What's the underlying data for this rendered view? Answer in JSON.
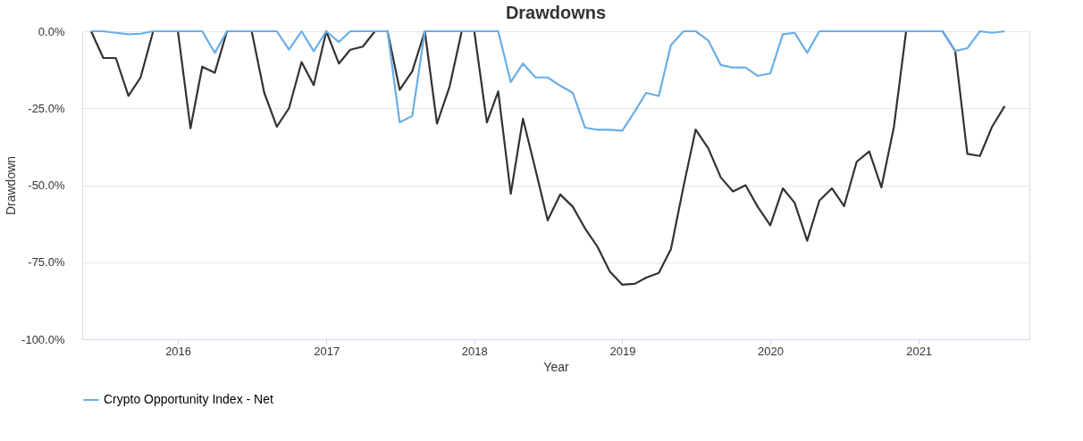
{
  "chart_data": {
    "type": "line",
    "title": "Drawdowns",
    "xlabel": "Year",
    "ylabel": "Drawdown",
    "x": [
      "2015-06",
      "2015-07",
      "2015-08",
      "2015-09",
      "2015-10",
      "2015-11",
      "2015-12",
      "2016-01",
      "2016-02",
      "2016-03",
      "2016-04",
      "2016-05",
      "2016-06",
      "2016-07",
      "2016-08",
      "2016-09",
      "2016-10",
      "2016-11",
      "2016-12",
      "2017-01",
      "2017-02",
      "2017-03",
      "2017-04",
      "2017-05",
      "2017-06",
      "2017-07",
      "2017-08",
      "2017-09",
      "2017-10",
      "2017-11",
      "2017-12",
      "2018-01",
      "2018-02",
      "2018-03",
      "2018-04",
      "2018-05",
      "2018-06",
      "2018-07",
      "2018-08",
      "2018-09",
      "2018-10",
      "2018-11",
      "2018-12",
      "2019-01",
      "2019-02",
      "2019-03",
      "2019-04",
      "2019-05",
      "2019-06",
      "2019-07",
      "2019-08",
      "2019-09",
      "2019-10",
      "2019-11",
      "2019-12",
      "2020-01",
      "2020-02",
      "2020-03",
      "2020-04",
      "2020-05",
      "2020-06",
      "2020-07",
      "2020-08",
      "2020-09",
      "2020-10",
      "2020-11",
      "2020-12",
      "2021-01",
      "2021-02",
      "2021-03",
      "2021-04",
      "2021-05",
      "2021-06",
      "2021-07",
      "2021-08"
    ],
    "series": [
      {
        "name": "Crypto Opportunity Index - Net",
        "color": "#6aaee8",
        "values": [
          0,
          0,
          -0.5,
          -1,
          -0.8,
          0,
          0,
          0,
          0,
          0,
          -7,
          0,
          0,
          0,
          0,
          0,
          -6,
          0,
          -6.5,
          0,
          -3.5,
          0,
          0,
          0,
          0,
          -29.6,
          -27.5,
          0,
          0,
          0,
          0,
          0,
          0,
          0,
          -16.5,
          -10.5,
          -15,
          -15,
          -17.7,
          -20,
          -31.3,
          -32,
          -32,
          -32.3,
          -26,
          -20,
          -21,
          -4.5,
          0,
          0,
          -3,
          -11,
          -11.8,
          -11.8,
          -14.5,
          -13.7,
          -1,
          -0.5,
          -7,
          0,
          0,
          0,
          0,
          0,
          0,
          0,
          0,
          0,
          0,
          0,
          -6.4,
          -5.5,
          0,
          -0.5,
          0
        ]
      },
      {
        "color": "#333333",
        "values": [
          0,
          -8.7,
          -8.7,
          -21,
          -15,
          0,
          0,
          0,
          -31.5,
          -11.5,
          -13.5,
          0,
          0,
          0,
          -20,
          -31,
          -25,
          -10,
          -17.5,
          0,
          -10.5,
          -6,
          -5,
          0,
          0,
          -19,
          -13,
          0,
          -30,
          -18,
          0,
          0,
          -29.6,
          -19.5,
          -52.8,
          -28.4,
          -45,
          -61.4,
          -53,
          -57,
          -64,
          -70,
          -78,
          -82.3,
          -82,
          -80,
          -78.5,
          -70.7,
          -50.4,
          -31.9,
          -38,
          -47.5,
          -52,
          -50,
          -57,
          -63,
          -51,
          -55.7,
          -68,
          -55,
          -51,
          -56.8,
          -42.4,
          -39,
          -50.7,
          -31,
          0,
          0,
          0,
          0,
          -6.4,
          -39.8,
          -40.5,
          -31,
          -24.3
        ]
      }
    ],
    "xlim": [
      "2015-05-10",
      "2021-10-01"
    ],
    "xticks": [
      "2016",
      "2017",
      "2018",
      "2019",
      "2020",
      "2021"
    ],
    "ylim": [
      -100,
      0
    ],
    "yticks": [
      {
        "value": -100,
        "label": "-100.0%"
      },
      {
        "value": -75,
        "label": "-75.0%"
      },
      {
        "value": -50,
        "label": "-50.0%"
      },
      {
        "value": -25,
        "label": "-25.0%"
      },
      {
        "value": 0,
        "label": "0.0%"
      }
    ],
    "grid": "y",
    "legend": "bottom",
    "marker": "none",
    "line_style": "solid"
  }
}
